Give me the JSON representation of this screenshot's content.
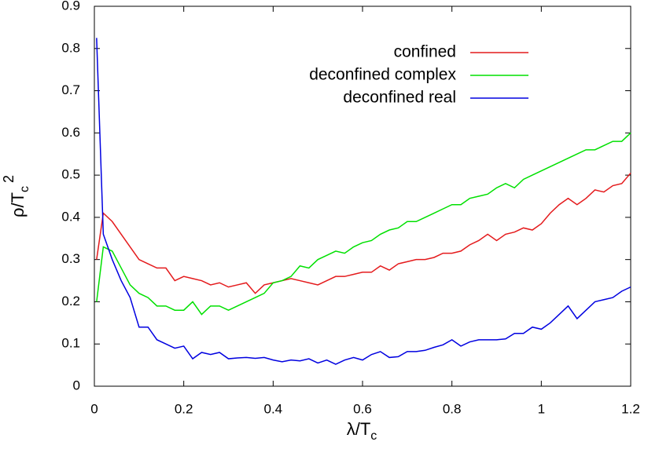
{
  "chart_data": {
    "type": "line",
    "xlabel": [
      "λ/T",
      "c"
    ],
    "ylabel": [
      "ρ/T",
      "c",
      "2"
    ],
    "x": [
      0.005,
      0.02,
      0.04,
      0.06,
      0.08,
      0.1,
      0.12,
      0.14,
      0.16,
      0.18,
      0.2,
      0.22,
      0.24,
      0.26,
      0.28,
      0.3,
      0.32,
      0.34,
      0.36,
      0.38,
      0.4,
      0.42,
      0.44,
      0.46,
      0.48,
      0.5,
      0.52,
      0.54,
      0.56,
      0.58,
      0.6,
      0.62,
      0.64,
      0.66,
      0.68,
      0.7,
      0.72,
      0.74,
      0.76,
      0.78,
      0.8,
      0.82,
      0.84,
      0.86,
      0.88,
      0.9,
      0.92,
      0.94,
      0.96,
      0.98,
      1,
      1.02,
      1.04,
      1.06,
      1.08,
      1.1,
      1.12,
      1.14,
      1.16,
      1.18,
      1.2
    ],
    "series": [
      {
        "name": "confined",
        "color": "#e41a1c",
        "values": [
          0.3,
          0.41,
          0.39,
          0.36,
          0.33,
          0.3,
          0.29,
          0.28,
          0.28,
          0.25,
          0.26,
          0.255,
          0.25,
          0.24,
          0.245,
          0.235,
          0.24,
          0.245,
          0.22,
          0.24,
          0.245,
          0.25,
          0.255,
          0.25,
          0.245,
          0.24,
          0.25,
          0.26,
          0.26,
          0.265,
          0.27,
          0.27,
          0.285,
          0.275,
          0.29,
          0.295,
          0.3,
          0.3,
          0.305,
          0.315,
          0.315,
          0.32,
          0.335,
          0.345,
          0.36,
          0.345,
          0.36,
          0.365,
          0.375,
          0.37,
          0.385,
          0.41,
          0.43,
          0.445,
          0.43,
          0.445,
          0.465,
          0.46,
          0.475,
          0.48,
          0.505
        ]
      },
      {
        "name": "deconfined complex",
        "color": "#00e000",
        "values": [
          0.2,
          0.33,
          0.32,
          0.28,
          0.24,
          0.22,
          0.21,
          0.19,
          0.19,
          0.18,
          0.18,
          0.2,
          0.17,
          0.19,
          0.19,
          0.18,
          0.19,
          0.2,
          0.21,
          0.22,
          0.245,
          0.25,
          0.26,
          0.285,
          0.28,
          0.3,
          0.31,
          0.32,
          0.315,
          0.33,
          0.34,
          0.345,
          0.36,
          0.37,
          0.375,
          0.39,
          0.39,
          0.4,
          0.41,
          0.42,
          0.43,
          0.43,
          0.445,
          0.45,
          0.455,
          0.47,
          0.48,
          0.47,
          0.49,
          0.5,
          0.51,
          0.52,
          0.53,
          0.54,
          0.55,
          0.56,
          0.56,
          0.57,
          0.58,
          0.58,
          0.6
        ]
      },
      {
        "name": "deconfined real",
        "color": "#0000e0",
        "values": [
          0.825,
          0.36,
          0.3,
          0.25,
          0.21,
          0.14,
          0.14,
          0.11,
          0.1,
          0.09,
          0.095,
          0.065,
          0.08,
          0.075,
          0.08,
          0.065,
          0.067,
          0.068,
          0.066,
          0.068,
          0.062,
          0.058,
          0.062,
          0.06,
          0.065,
          0.055,
          0.062,
          0.052,
          0.062,
          0.068,
          0.062,
          0.075,
          0.082,
          0.068,
          0.07,
          0.082,
          0.082,
          0.085,
          0.092,
          0.098,
          0.11,
          0.095,
          0.105,
          0.11,
          0.11,
          0.11,
          0.112,
          0.125,
          0.125,
          0.14,
          0.135,
          0.15,
          0.17,
          0.19,
          0.16,
          0.18,
          0.2,
          0.205,
          0.21,
          0.225,
          0.235
        ]
      }
    ],
    "xlim": [
      0,
      1.2
    ],
    "xticks": [
      0,
      0.2,
      0.4,
      0.6,
      0.8,
      1,
      1.2
    ],
    "ylim": [
      0,
      0.9
    ],
    "yticks": [
      0,
      0.1,
      0.2,
      0.3,
      0.4,
      0.5,
      0.6,
      0.7,
      0.8,
      0.9
    ],
    "grid": false,
    "legend": "upper-right"
  }
}
